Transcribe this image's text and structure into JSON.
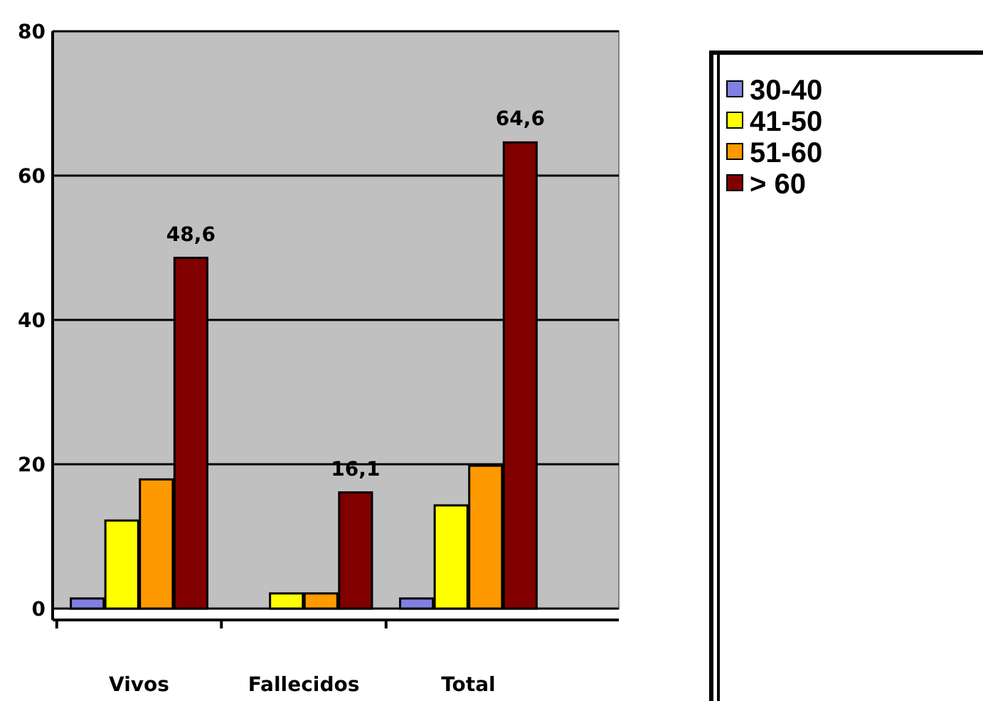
{
  "chart_data": {
    "type": "bar",
    "categories": [
      "Vivos",
      "Fallecidos",
      "Total"
    ],
    "series": [
      {
        "name": "30-40",
        "color": "#8080e0",
        "values": [
          1.4,
          0,
          1.4
        ]
      },
      {
        "name": "41-50",
        "color": "#ffff00",
        "values": [
          12.2,
          2.1,
          14.3
        ]
      },
      {
        "name": "51-60",
        "color": "#ff9900",
        "values": [
          17.9,
          2.1,
          19.8
        ]
      },
      {
        "name": "> 60",
        "color": "#800000",
        "values": [
          48.6,
          16.1,
          64.6
        ],
        "value_labels": [
          "48,6",
          "16,1",
          "64,6"
        ]
      }
    ],
    "ylim": [
      0,
      80
    ],
    "yticks": [
      0,
      20,
      40,
      60,
      80
    ],
    "grid": "y",
    "legend": "right"
  }
}
